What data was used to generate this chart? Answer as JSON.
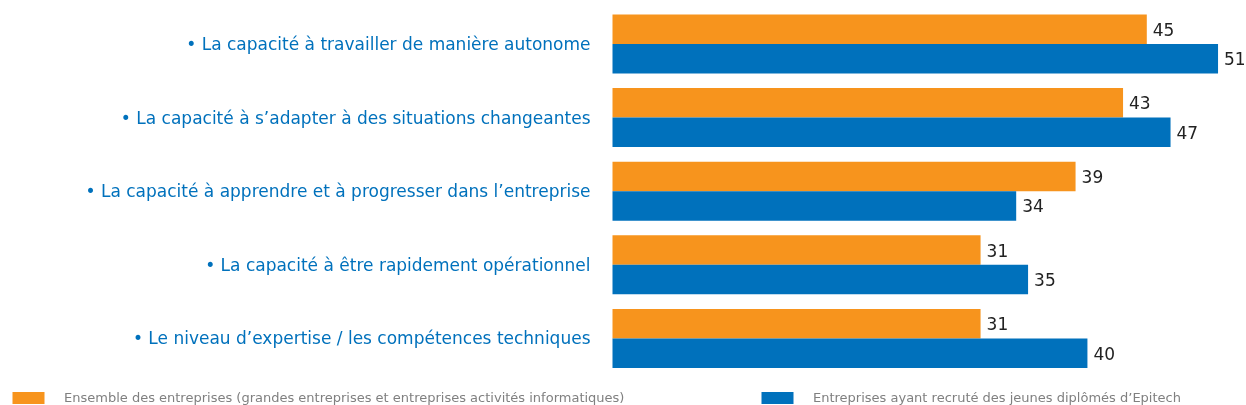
{
  "chart_data": {
    "type": "bar",
    "orientation": "horizontal",
    "data_labels": true,
    "legend": "bottom",
    "grid": false,
    "categories": [
      "• La capacité à travailler de manière autonome",
      "• La capacité à s’adapter à des situations changeantes",
      "• La capacité à apprendre et à progresser dans l’entreprise",
      "• La capacité à être rapidement opérationnel",
      "• Le niveau d’expertise / les compétences techniques"
    ],
    "series": [
      {
        "name": "Ensemble des entreprises (grandes entreprises et entreprises activités informatiques)",
        "color": "#f7941d",
        "values": [
          45,
          43,
          39,
          31,
          31
        ]
      },
      {
        "name": "Entreprises ayant recruté des jeunes diplômés d’Epitech",
        "color": "#0071bc",
        "values": [
          51,
          47,
          34,
          35,
          40
        ]
      }
    ]
  }
}
